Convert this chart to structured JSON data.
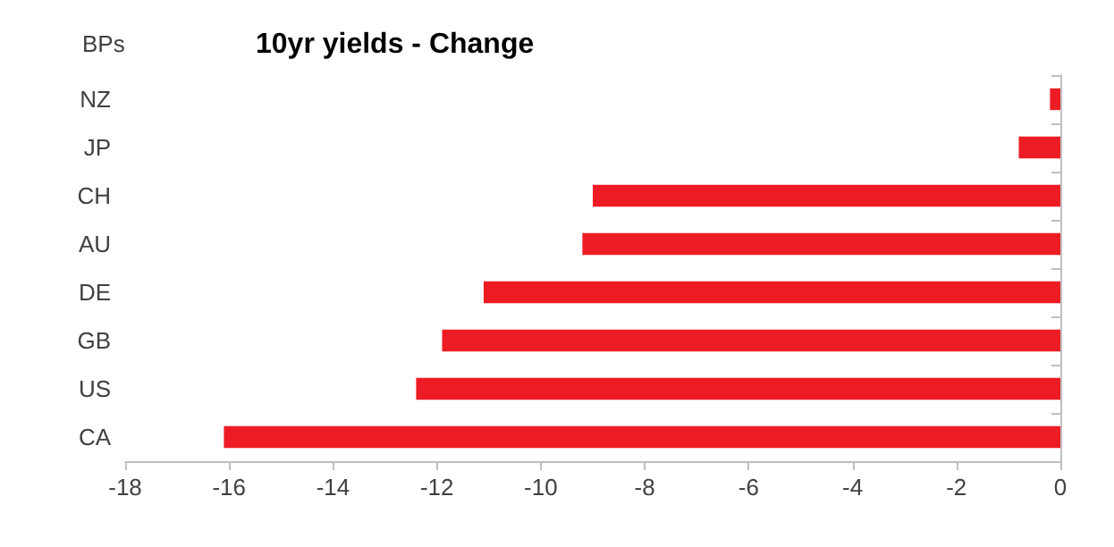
{
  "chart_data": {
    "type": "bar",
    "orientation": "horizontal",
    "title": "10yr yields - Change",
    "xlabel": "BPs",
    "categories": [
      "NZ",
      "JP",
      "CH",
      "AU",
      "DE",
      "GB",
      "US",
      "CA"
    ],
    "series": [
      {
        "color": "#ed1c24",
        "values": [
          -0.2,
          -0.8,
          -9.0,
          -9.2,
          -11.1,
          -11.9,
          -12.4,
          -16.1
        ]
      }
    ],
    "xlim": [
      -18,
      0
    ],
    "xticks": [
      -18,
      -16,
      -14,
      -12,
      -10,
      -8,
      -6,
      -4,
      -2,
      0
    ],
    "grid": false
  }
}
